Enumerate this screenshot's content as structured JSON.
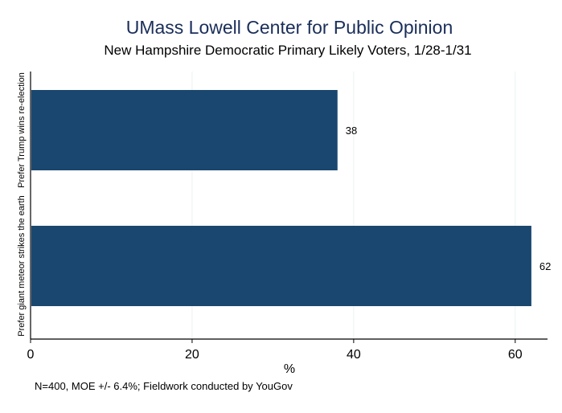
{
  "chart_data": {
    "type": "bar",
    "orientation": "horizontal",
    "title": "UMass Lowell Center for Public Opinion",
    "subtitle": "New Hampshire Democratic Primary Likely Voters, 1/28-1/31",
    "categories": [
      "Prefer Trump wins re-election",
      "Prefer giant meteor strikes the earth"
    ],
    "values": [
      38,
      62
    ],
    "value_labels": [
      "38",
      "62"
    ],
    "xlabel": "%",
    "ylabel": "",
    "xlim": [
      0,
      64
    ],
    "xticks": [
      0,
      20,
      40,
      60
    ],
    "xtick_labels": [
      "0",
      "20",
      "40",
      "60"
    ],
    "grid": true,
    "legend": "none",
    "note": "N=400, MOE +/- 6.4%; Fieldwork conducted by YouGov"
  },
  "colors": {
    "bar": "#1a476f",
    "axis": "#000000",
    "grid": "#eaf2f3",
    "title": "#1a2e5a",
    "text": "#000000"
  }
}
